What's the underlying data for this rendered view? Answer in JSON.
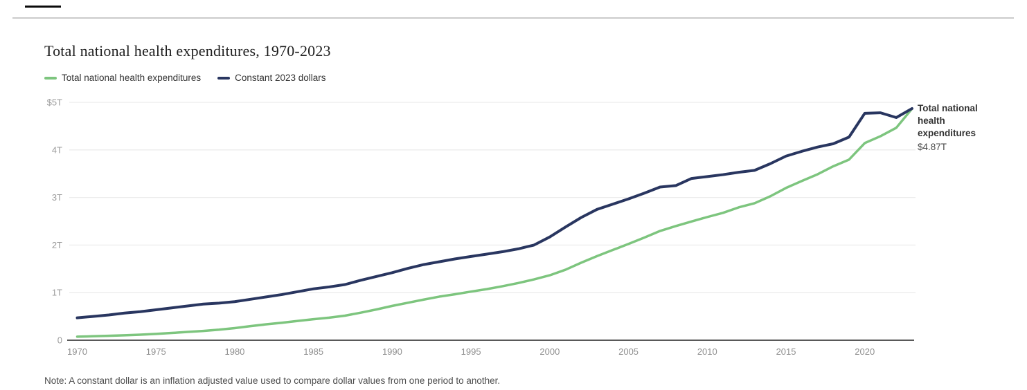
{
  "page": {
    "title": "Total national health expenditures, 1970-2023",
    "note": "Note: A constant dollar is an inflation adjusted value used to compare dollar values from one period to another."
  },
  "legend": {
    "items": [
      {
        "label": "Total national health expenditures",
        "color": "#7dc57e"
      },
      {
        "label": "Constant 2023 dollars",
        "color": "#293660"
      }
    ]
  },
  "annotation": {
    "label": "Total national health expenditures",
    "value": "$4.87T"
  },
  "chart_data": {
    "type": "line",
    "title": "Total national health expenditures, 1970-2023",
    "xlabel": "",
    "ylabel": "",
    "units": "trillions of US dollars",
    "xlim": [
      1970,
      2023
    ],
    "ylim": [
      0,
      5
    ],
    "grid": "horizontal",
    "legend_position": "top-left",
    "x": [
      1970,
      1971,
      1972,
      1973,
      1974,
      1975,
      1976,
      1977,
      1978,
      1979,
      1980,
      1981,
      1982,
      1983,
      1984,
      1985,
      1986,
      1987,
      1988,
      1989,
      1990,
      1991,
      1992,
      1993,
      1994,
      1995,
      1996,
      1997,
      1998,
      1999,
      2000,
      2001,
      2002,
      2003,
      2004,
      2005,
      2006,
      2007,
      2008,
      2009,
      2010,
      2011,
      2012,
      2013,
      2014,
      2015,
      2016,
      2017,
      2018,
      2019,
      2020,
      2021,
      2022,
      2023
    ],
    "x_ticks": [
      1970,
      1975,
      1980,
      1985,
      1990,
      1995,
      2000,
      2005,
      2010,
      2015,
      2020
    ],
    "y_ticks": [
      {
        "v": 0,
        "label": "0"
      },
      {
        "v": 1,
        "label": "1T"
      },
      {
        "v": 2,
        "label": "2T"
      },
      {
        "v": 3,
        "label": "3T"
      },
      {
        "v": 4,
        "label": "4T"
      },
      {
        "v": 5,
        "label": "$5T"
      }
    ],
    "series": [
      {
        "name": "Total national health expenditures",
        "color": "#7dc57e",
        "stroke_width": 3.5,
        "values": [
          0.075,
          0.083,
          0.093,
          0.103,
          0.117,
          0.133,
          0.152,
          0.174,
          0.195,
          0.221,
          0.255,
          0.296,
          0.334,
          0.367,
          0.405,
          0.442,
          0.474,
          0.516,
          0.579,
          0.647,
          0.721,
          0.788,
          0.854,
          0.917,
          0.967,
          1.022,
          1.074,
          1.135,
          1.202,
          1.278,
          1.365,
          1.482,
          1.63,
          1.768,
          1.896,
          2.024,
          2.157,
          2.296,
          2.399,
          2.495,
          2.589,
          2.677,
          2.793,
          2.879,
          3.025,
          3.201,
          3.347,
          3.487,
          3.656,
          3.796,
          4.144,
          4.289,
          4.465,
          4.867
        ]
      },
      {
        "name": "Constant 2023 dollars",
        "color": "#293660",
        "stroke_width": 4,
        "values": [
          0.47,
          0.5,
          0.53,
          0.57,
          0.6,
          0.64,
          0.68,
          0.72,
          0.76,
          0.78,
          0.81,
          0.86,
          0.91,
          0.96,
          1.02,
          1.08,
          1.12,
          1.17,
          1.26,
          1.34,
          1.42,
          1.51,
          1.59,
          1.65,
          1.71,
          1.76,
          1.81,
          1.86,
          1.92,
          2.0,
          2.17,
          2.38,
          2.58,
          2.75,
          2.86,
          2.97,
          3.09,
          3.22,
          3.25,
          3.4,
          3.44,
          3.48,
          3.53,
          3.57,
          3.71,
          3.87,
          3.97,
          4.06,
          4.13,
          4.27,
          4.77,
          4.78,
          4.68,
          4.87
        ]
      }
    ],
    "end_label": {
      "series": "Total national health expenditures",
      "value_label": "$4.87T"
    }
  }
}
